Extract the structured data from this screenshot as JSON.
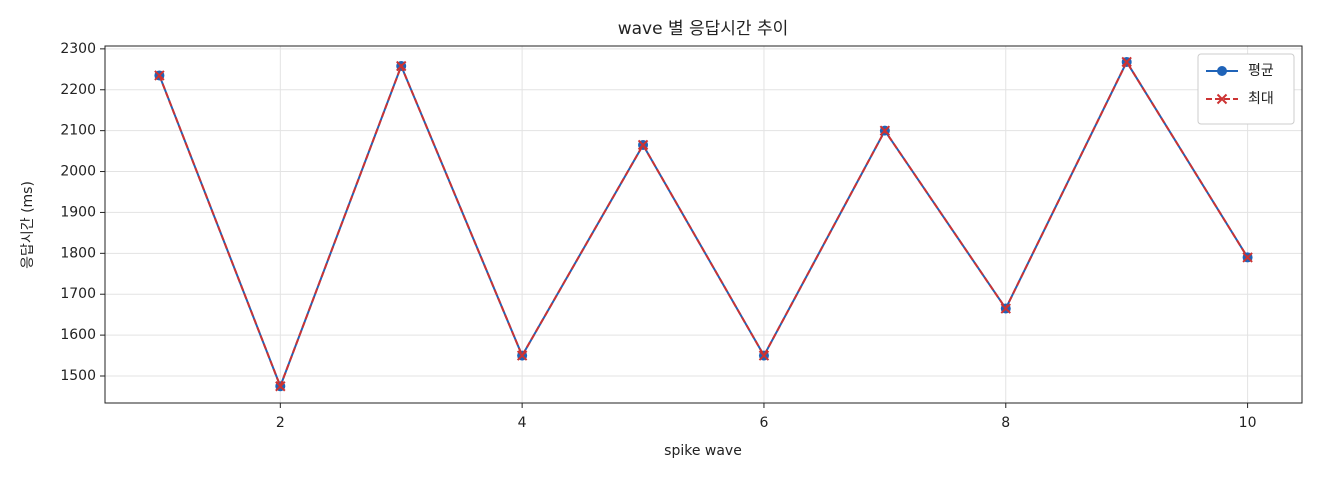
{
  "chart_data": {
    "type": "line",
    "title": "wave 별 응답시간 추이",
    "xlabel": "spike wave",
    "ylabel": "응답시간 (ms)",
    "x": [
      1,
      2,
      3,
      4,
      5,
      6,
      7,
      8,
      9,
      10
    ],
    "series": [
      {
        "name": "평균",
        "color": "#1f63b8",
        "linestyle": "solid",
        "marker": "circle",
        "values": [
          2235,
          1475,
          2258,
          1550,
          2065,
          1550,
          2100,
          1665,
          2268,
          1790
        ]
      },
      {
        "name": "최대",
        "color": "#cc3333",
        "linestyle": "dashed",
        "marker": "x",
        "values": [
          2235,
          1475,
          2258,
          1550,
          2065,
          1550,
          2100,
          1665,
          2268,
          1790
        ]
      }
    ],
    "xlim": [
      0.55,
      10.45
    ],
    "ylim": [
      1434,
      2307
    ],
    "xticks": [
      2,
      4,
      6,
      8,
      10
    ],
    "yticks": [
      1500,
      1600,
      1700,
      1800,
      1900,
      2000,
      2100,
      2200,
      2300
    ],
    "grid": true,
    "legend": "upper right"
  }
}
